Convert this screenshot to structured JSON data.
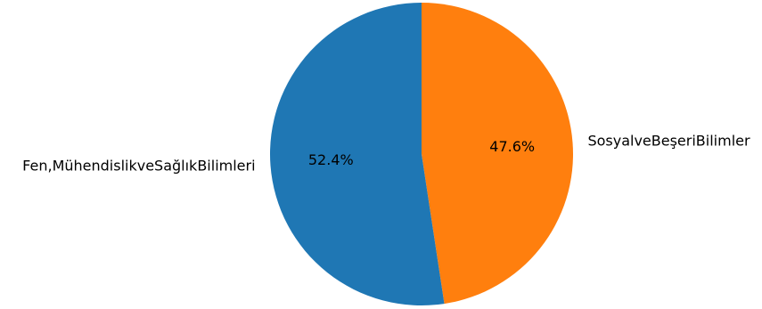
{
  "chart_data": {
    "type": "pie",
    "title": "",
    "start_angle_deg": 90,
    "direction": "clockwise",
    "slices": [
      {
        "label": "SosyalveBeşeriBilimler",
        "value": 47.6,
        "pct_text": "47.6%",
        "color": "#ff7f0e"
      },
      {
        "label": "Fen,MühendislikveSağlıkBilimleri",
        "value": 52.4,
        "pct_text": "52.4%",
        "color": "#1f77b4"
      }
    ]
  }
}
